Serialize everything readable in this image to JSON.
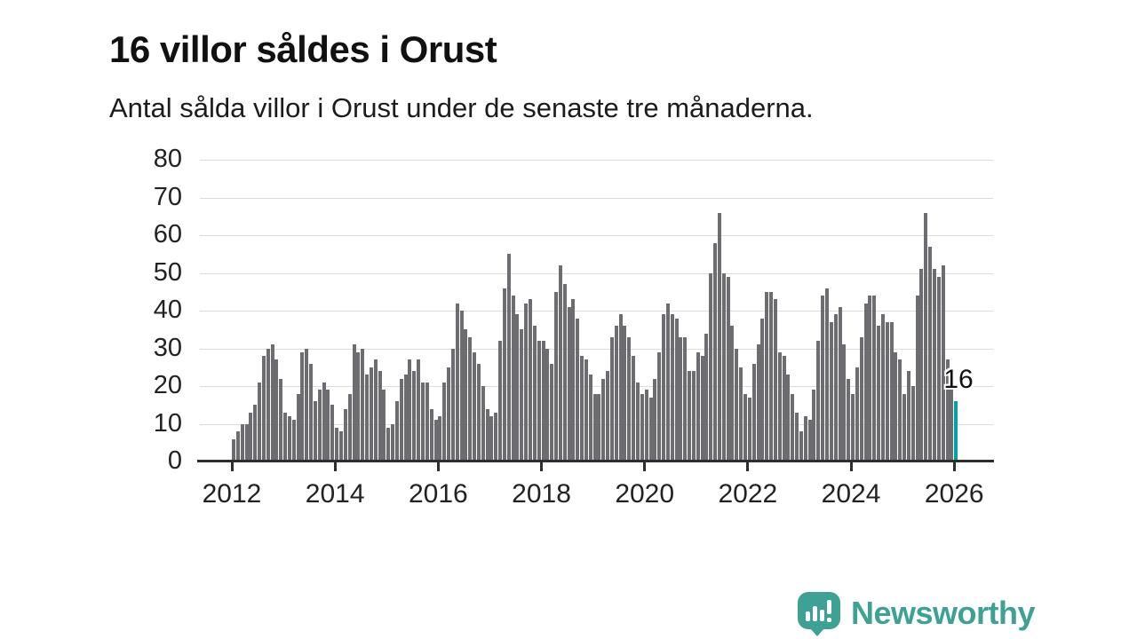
{
  "title": "16 villor såldes i Orust",
  "subtitle": "Antal sålda villor i Orust under de senaste tre månaderna.",
  "annotation_label": "16",
  "branding": {
    "name": "Newsworthy",
    "icon": "speech-bubble-bar-chart-icon",
    "color": "#3da193"
  },
  "colors": {
    "bar": "#6c6c71",
    "highlight_bar": "#00a3a4",
    "gridline": "#dbdbdb",
    "axis": "#2e2e2e",
    "text": "#111111"
  },
  "chart_data": {
    "type": "bar",
    "title": "16 villor såldes i Orust",
    "subtitle": "Antal sålda villor i Orust under de senaste tre månaderna.",
    "unit": "sålda villor (rullande 3 månader)",
    "frequency": "monthly",
    "start_month": "2012-01",
    "end_month": "2026-01",
    "ylim": [
      0,
      80
    ],
    "y_ticks": [
      0,
      10,
      20,
      30,
      40,
      50,
      60,
      70,
      80
    ],
    "x_tick_labels": [
      "2012",
      "2014",
      "2016",
      "2018",
      "2020",
      "2022",
      "2024",
      "2026"
    ],
    "grid": "horizontal",
    "legend": "none",
    "highlight_last_bar": true,
    "last_value_label": "16",
    "values": [
      6,
      8,
      10,
      10,
      13,
      15,
      21,
      28,
      30,
      31,
      27,
      22,
      13,
      12,
      11,
      18,
      29,
      30,
      26,
      16,
      19,
      21,
      19,
      15,
      9,
      8,
      14,
      18,
      31,
      29,
      30,
      23,
      25,
      27,
      24,
      19,
      9,
      10,
      16,
      22,
      23,
      27,
      24,
      27,
      21,
      21,
      14,
      11,
      12,
      21,
      25,
      30,
      42,
      40,
      35,
      33,
      29,
      26,
      20,
      14,
      12,
      13,
      32,
      46,
      55,
      44,
      39,
      35,
      42,
      43,
      36,
      32,
      32,
      30,
      26,
      45,
      52,
      47,
      41,
      43,
      38,
      28,
      27,
      23,
      18,
      18,
      22,
      24,
      33,
      36,
      39,
      36,
      33,
      28,
      21,
      18,
      19,
      17,
      22,
      29,
      39,
      42,
      39,
      38,
      33,
      33,
      24,
      24,
      29,
      28,
      34,
      50,
      58,
      66,
      50,
      49,
      36,
      30,
      25,
      18,
      17,
      26,
      31,
      38,
      45,
      45,
      43,
      29,
      28,
      23,
      18,
      13,
      8,
      12,
      11,
      19,
      32,
      44,
      46,
      37,
      39,
      41,
      31,
      22,
      18,
      25,
      33,
      42,
      44,
      44,
      36,
      39,
      37,
      37,
      29,
      27,
      18,
      24,
      20,
      44,
      51,
      66,
      57,
      51,
      49,
      52,
      27,
      22,
      16
    ]
  }
}
